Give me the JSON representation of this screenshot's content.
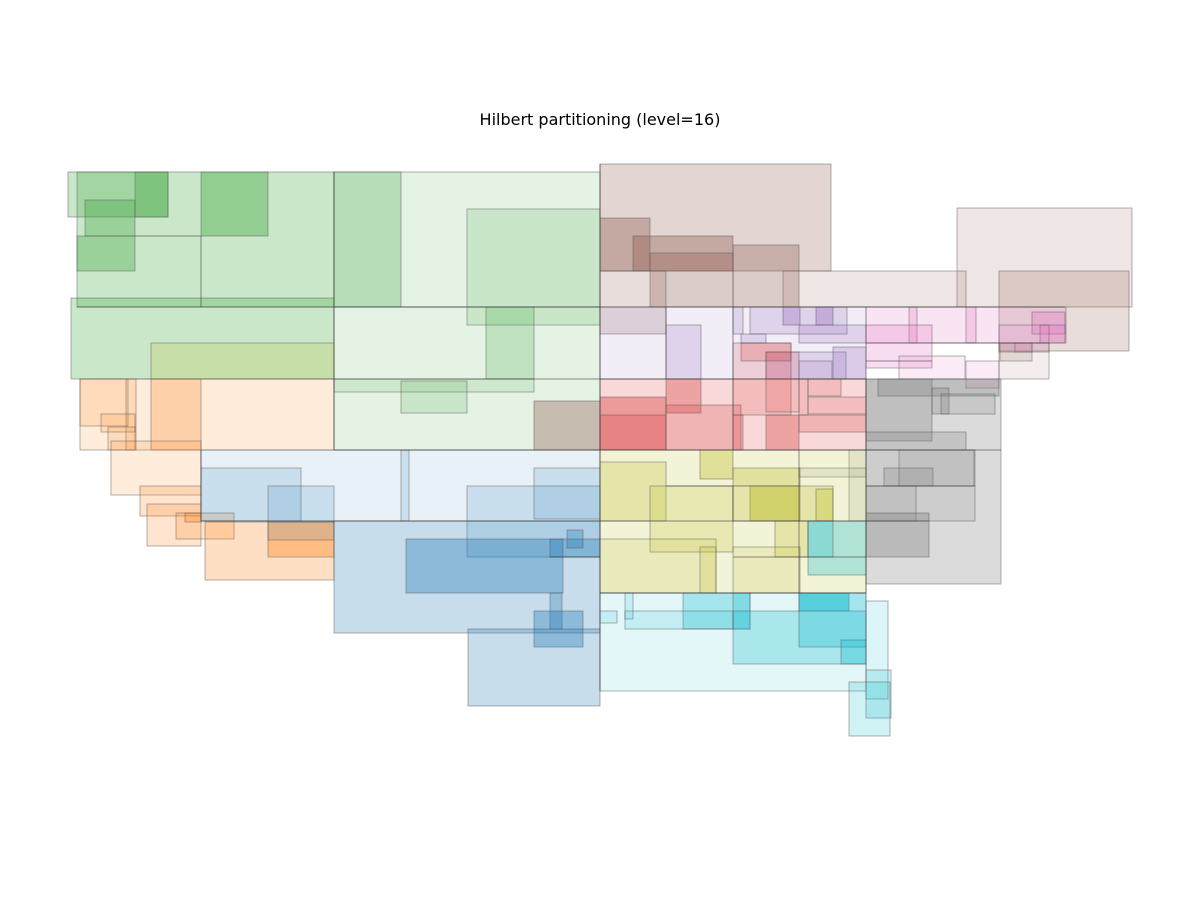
{
  "figure": {
    "title": "Hilbert partitioning (level=16)"
  },
  "palette": {
    "green": "#2ca02c",
    "orange": "#ff7f0e",
    "blue": "#1f77b4",
    "brown": "#8c564b",
    "purple": "#9467bd",
    "pink": "#e377c2",
    "red": "#d62728",
    "gray": "#7f7f7f",
    "olive": "#bcbd22",
    "cyan": "#17becf"
  },
  "partition_groups": [
    "green",
    "orange",
    "blue",
    "brown",
    "purple",
    "pink",
    "red",
    "gray",
    "olive",
    "cyan"
  ]
}
